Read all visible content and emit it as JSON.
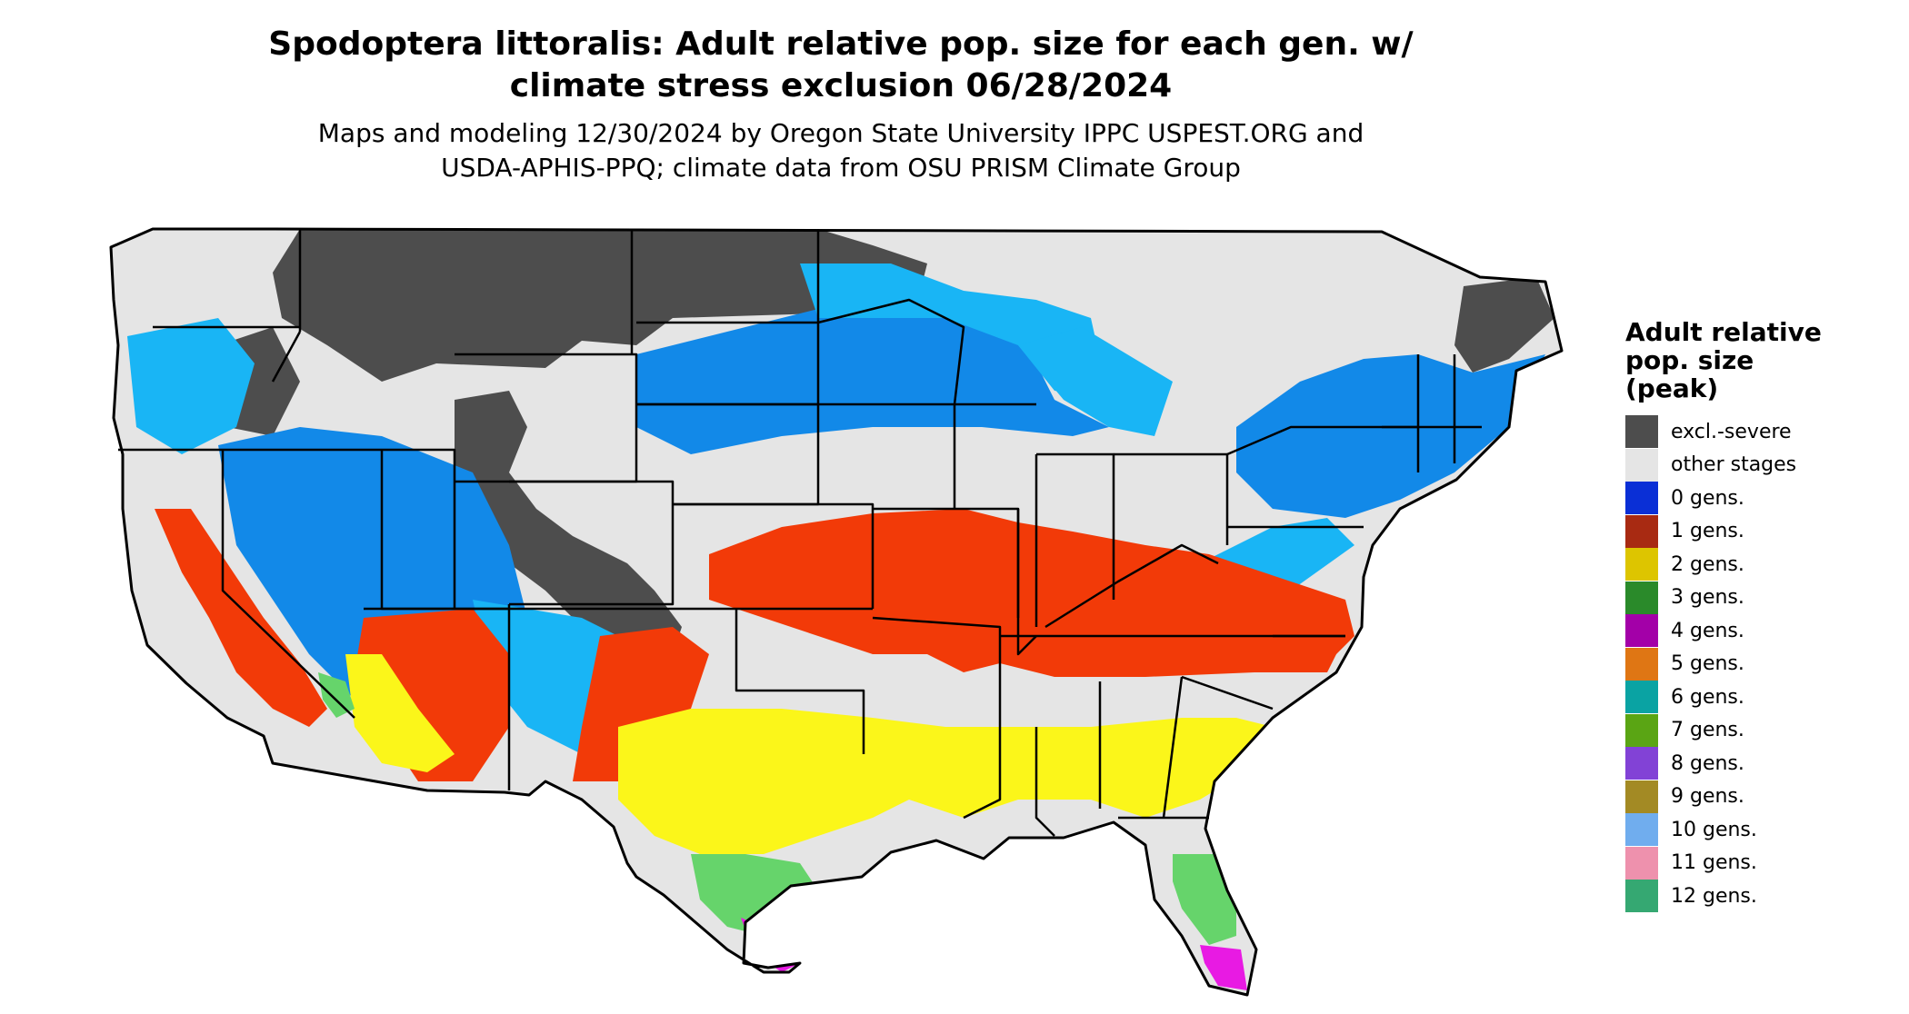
{
  "title_line1": "Spodoptera littoralis: Adult relative pop. size for each gen. w/",
  "title_line2": "climate stress exclusion 06/28/2024",
  "subtitle_line1": "Maps and modeling 12/30/2024 by Oregon State University IPPC USPEST.ORG and",
  "subtitle_line2": "USDA-APHIS-PPQ; climate data from OSU PRISM Climate Group",
  "legend": {
    "title_lines": [
      "Adult relative",
      "pop. size",
      "(peak)"
    ],
    "items": [
      {
        "label": "excl.-severe",
        "color": "#4d4d4d"
      },
      {
        "label": "other stages",
        "color": "#e5e5e5"
      },
      {
        "label": "0 gens.",
        "color": "#0a2fd6"
      },
      {
        "label": "1 gens.",
        "color": "#a82a12"
      },
      {
        "label": "2 gens.",
        "color": "#ddc500"
      },
      {
        "label": "3 gens.",
        "color": "#2a8a2a"
      },
      {
        "label": "4 gens.",
        "color": "#a300a8"
      },
      {
        "label": "5 gens.",
        "color": "#df7614"
      },
      {
        "label": "6 gens.",
        "color": "#0aa3a3"
      },
      {
        "label": "7 gens.",
        "color": "#5aa514"
      },
      {
        "label": "8 gens.",
        "color": "#8242d6"
      },
      {
        "label": "9 gens.",
        "color": "#a38a24"
      },
      {
        "label": "10 gens.",
        "color": "#70adee"
      },
      {
        "label": "11 gens.",
        "color": "#ee91ad"
      },
      {
        "label": "12 gens.",
        "color": "#35a872"
      }
    ]
  },
  "map_colors": {
    "background": "#e5e5e5",
    "excluded": "#4d4d4d",
    "blue_light": "#19b5f5",
    "blue_mid": "#1289e8",
    "red_orange": "#f23a08",
    "yellow": "#fbf61a",
    "green": "#66d46b",
    "magenta": "#e81ae3",
    "border": "#000000"
  }
}
